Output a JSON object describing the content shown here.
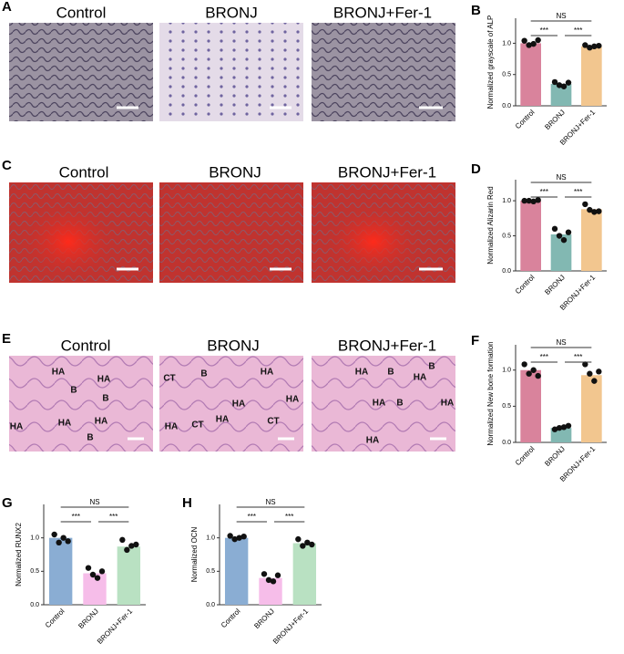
{
  "panel_labels": [
    "A",
    "B",
    "C",
    "D",
    "E",
    "F",
    "G",
    "H"
  ],
  "image_panels": [
    {
      "titles": [
        "Control",
        "BRONJ",
        "BRONJ+Fer-1"
      ]
    },
    {
      "titles": [
        "Control",
        "BRONJ",
        "BRONJ+Fer-1"
      ]
    },
    {
      "titles": [
        "Control",
        "BRONJ",
        "BRONJ+Fer-1"
      ],
      "annotations": [
        [
          "HA",
          "HA",
          "B",
          "B",
          "HA",
          "HA",
          "HA",
          "B"
        ],
        [
          "CT",
          "B",
          "HA",
          "HA",
          "HA",
          "HA",
          "CT",
          "HA",
          "CT"
        ],
        [
          "HA",
          "B",
          "HA",
          "B",
          "HA",
          "B",
          "HA",
          "HA"
        ]
      ]
    }
  ],
  "chart_data": [
    {
      "type": "bar",
      "y_label": "Normalized grayscale of ALP",
      "categories": [
        "Control",
        "BRONJ",
        "BRONJ+Fer-1"
      ],
      "values": [
        1.0,
        0.35,
        0.95
      ],
      "colors": [
        "#d9839c",
        "#82b8b2",
        "#f2c68f"
      ],
      "points": [
        [
          1.04,
          0.97,
          0.99,
          1.05
        ],
        [
          0.38,
          0.33,
          0.31,
          0.37
        ],
        [
          0.97,
          0.93,
          0.95,
          0.96
        ]
      ],
      "ylim": [
        0,
        1.4
      ],
      "yticks": [
        {
          "value": 0,
          "label": "0.0"
        },
        {
          "value": 0.5,
          "label": "0.5"
        },
        {
          "value": 1,
          "label": "1.0"
        }
      ],
      "annotations": [
        "NS",
        "***",
        "***"
      ]
    },
    {
      "type": "bar",
      "y_label": "Normalized Alizarin Red",
      "categories": [
        "Control",
        "BRONJ",
        "BRONJ+Fer-1"
      ],
      "values": [
        1.0,
        0.52,
        0.88
      ],
      "colors": [
        "#d9839c",
        "#82b8b2",
        "#f2c68f"
      ],
      "points": [
        [
          1.0,
          1.0,
          0.99,
          1.01
        ],
        [
          0.6,
          0.5,
          0.44,
          0.55
        ],
        [
          0.95,
          0.87,
          0.84,
          0.85
        ]
      ],
      "ylim": [
        0,
        1.3
      ],
      "yticks": [
        {
          "value": 0,
          "label": "0.0"
        },
        {
          "value": 0.5,
          "label": "0.5"
        },
        {
          "value": 1,
          "label": "1.0"
        }
      ],
      "annotations": [
        "NS",
        "***",
        "***"
      ]
    },
    {
      "type": "bar",
      "y_label": "Normalized New bone formation",
      "categories": [
        "Control",
        "BRONJ",
        "BRONJ+Fer-1"
      ],
      "values": [
        1.0,
        0.2,
        0.93
      ],
      "colors": [
        "#d9839c",
        "#82b8b2",
        "#f2c68f"
      ],
      "points": [
        [
          1.08,
          0.95,
          1.0,
          0.92
        ],
        [
          0.18,
          0.2,
          0.21,
          0.23
        ],
        [
          1.08,
          0.95,
          0.85,
          0.98
        ]
      ],
      "ylim": [
        0,
        1.35
      ],
      "yticks": [
        {
          "value": 0,
          "label": "0.0"
        },
        {
          "value": 0.5,
          "label": "0.5"
        },
        {
          "value": 1,
          "label": "1.0"
        }
      ],
      "annotations": [
        "NS",
        "***",
        "***"
      ]
    },
    {
      "type": "bar",
      "y_label": "Normalized RUNX2",
      "categories": [
        "Control",
        "BRONJ",
        "BRONJ+Fer-1"
      ],
      "values": [
        1.0,
        0.47,
        0.87
      ],
      "colors": [
        "#8aadd3",
        "#f6bde9",
        "#b9e1c2"
      ],
      "points": [
        [
          1.05,
          0.93,
          1.0,
          0.95
        ],
        [
          0.55,
          0.45,
          0.4,
          0.5
        ],
        [
          0.97,
          0.82,
          0.88,
          0.9
        ]
      ],
      "ylim": [
        0,
        1.5
      ],
      "yticks": [
        {
          "value": 0,
          "label": "0.0"
        },
        {
          "value": 0.5,
          "label": "0.5"
        },
        {
          "value": 1,
          "label": "1.0"
        }
      ],
      "annotations": [
        "NS",
        "***",
        "***"
      ]
    },
    {
      "type": "bar",
      "y_label": "Normalized OCN",
      "categories": [
        "Control",
        "BRONJ",
        "BRONJ+Fer-1"
      ],
      "values": [
        1.0,
        0.4,
        0.92
      ],
      "colors": [
        "#8aadd3",
        "#f6bde9",
        "#b9e1c2"
      ],
      "points": [
        [
          1.03,
          0.98,
          1.0,
          1.02
        ],
        [
          0.46,
          0.37,
          0.35,
          0.44
        ],
        [
          0.98,
          0.88,
          0.93,
          0.9
        ]
      ],
      "ylim": [
        0,
        1.5
      ],
      "yticks": [
        {
          "value": 0,
          "label": "0.0"
        },
        {
          "value": 0.5,
          "label": "0.5"
        },
        {
          "value": 1,
          "label": "1.0"
        }
      ],
      "annotations": [
        "NS",
        "***",
        "***"
      ]
    }
  ]
}
